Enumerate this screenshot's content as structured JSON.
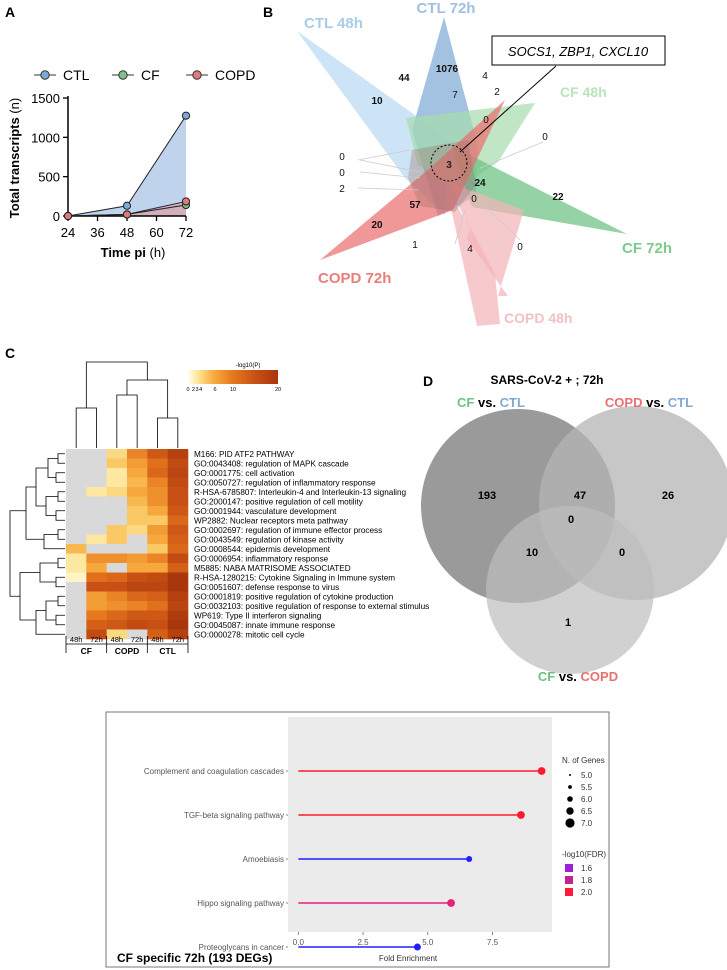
{
  "panel_labels": [
    "A",
    "B",
    "C",
    "D"
  ],
  "chart_data": [
    {
      "id": "A",
      "type": "line",
      "x": [
        24,
        48,
        72
      ],
      "xticks": [
        "24",
        "36",
        "48",
        "60",
        "72"
      ],
      "xtick_values": [
        24,
        36,
        48,
        60,
        72
      ],
      "yticks": [
        "0",
        "500",
        "1000",
        "1500"
      ],
      "ytick_values": [
        0,
        500,
        1000,
        1500
      ],
      "xlim": [
        24,
        72
      ],
      "ylim": [
        0,
        1500
      ],
      "xlabel_bold": "Time pi",
      "xlabel_unit": "(h)",
      "ylabel_bold": "Total transcripts",
      "ylabel_unit": "(n)",
      "legend": [
        "CTL",
        "CF",
        "COPD"
      ],
      "series": [
        {
          "name": "CTL",
          "values": [
            0,
            130,
            1275
          ],
          "color": "#7fa8d6",
          "fill": "#a9c4e6"
        },
        {
          "name": "CF",
          "values": [
            0,
            20,
            140
          ],
          "color": "#7fc08a",
          "fill": "#b5dcb9"
        },
        {
          "name": "COPD",
          "values": [
            0,
            20,
            185
          ],
          "color": "#e07a7a",
          "fill": "#dba0b8"
        }
      ]
    },
    {
      "id": "B",
      "type": "venn",
      "set_labels": [
        {
          "text": "CTL 48h",
          "color": "#a9cde8"
        },
        {
          "text": "CTL 72h",
          "color": "#9fc0e0"
        },
        {
          "text": "CF 48h",
          "color": "#b9e3b9"
        },
        {
          "text": "CF 72h",
          "color": "#7ccb8d"
        },
        {
          "text": "COPD 48h",
          "color": "#f2c1c3"
        },
        {
          "text": "COPD 72h",
          "color": "#ea7c7c"
        }
      ],
      "callout": "SOCS1, ZBP1, CXCL10",
      "counts": [
        "44",
        "1076",
        "4",
        "10",
        "7",
        "2",
        "0",
        "0",
        "0",
        "0",
        "2",
        "3",
        "24",
        "22",
        "57",
        "0",
        "20",
        "1",
        "4",
        "0"
      ]
    },
    {
      "id": "C",
      "type": "heatmap",
      "colorbar_title": "-log10(P)",
      "colorbar_ticks": [
        "0",
        "2",
        "3",
        "4",
        "6",
        "10",
        "20"
      ],
      "columns": [
        "48h",
        "72h",
        "48h",
        "72h",
        "48h",
        "72h"
      ],
      "groups": [
        "CF",
        "COPD",
        "CTL"
      ],
      "rows": [
        "M166: PID ATF2 PATHWAY",
        "GO:0043408: regulation of MAPK cascade",
        "GO:0001775: cell activation",
        "GO:0050727: regulation of inflammatory response",
        "R-HSA-6785807: Interleukin-4 and Interleukin-13 signaling",
        "GO:2000147: positive regulation of cell motility",
        "GO:0001944: vasculature development",
        "WP2882: Nuclear receptors meta pathway",
        "GO:0002697: regulation of immune effector process",
        "GO:0043549: regulation of kinase activity",
        "GO:0008544: epidermis development",
        "GO:0006954: inflammatory response",
        "M5885: NABA MATRISOME ASSOCIATED",
        "R-HSA-1280215: Cytokine Signaling in Immune system",
        "GO:0051607: defense response to virus",
        "GO:0001819: positive regulation of cytokine production",
        "GO:0032103: positive regulation of response to external stimulus",
        "WP619: Type II interferon signaling",
        "GO:0045087: innate immune response",
        "GO:0000278: mitotic cell cycle"
      ],
      "values": [
        [
          null,
          null,
          3,
          9,
          14,
          18
        ],
        [
          null,
          null,
          4,
          7,
          11,
          16
        ],
        [
          null,
          null,
          2,
          6,
          12,
          17
        ],
        [
          null,
          null,
          2,
          5,
          9,
          16
        ],
        [
          null,
          2,
          3,
          6,
          8,
          15
        ],
        [
          null,
          null,
          null,
          5,
          8,
          15
        ],
        [
          null,
          null,
          null,
          4,
          6,
          14
        ],
        [
          null,
          null,
          null,
          4,
          4,
          12
        ],
        [
          null,
          null,
          4,
          3,
          7,
          14
        ],
        [
          null,
          2,
          4,
          null,
          6,
          13
        ],
        [
          5,
          null,
          null,
          null,
          4,
          12
        ],
        [
          2,
          8,
          8,
          7,
          9,
          16
        ],
        [
          2,
          6,
          null,
          6,
          6,
          13
        ],
        [
          1,
          11,
          12,
          15,
          16,
          20
        ],
        [
          null,
          15,
          15,
          17,
          17,
          20
        ],
        [
          null,
          7,
          9,
          12,
          13,
          18
        ],
        [
          null,
          7,
          8,
          9,
          11,
          17
        ],
        [
          null,
          10,
          12,
          14,
          14,
          19
        ],
        [
          null,
          13,
          14,
          16,
          15,
          20
        ],
        [
          null,
          16,
          3,
          null,
          13,
          18
        ]
      ]
    },
    {
      "id": "D",
      "type": "venn",
      "title": "SARS-CoV-2 + ; 72h",
      "set_labels": [
        {
          "a": "CF",
          "vs": "vs.",
          "b": "CTL"
        },
        {
          "a": "COPD",
          "vs": "vs.",
          "b": "CTL"
        },
        {
          "a": "CF",
          "vs": "vs.",
          "b": "COPD"
        }
      ],
      "counts": [
        "193",
        "47",
        "26",
        "0",
        "10",
        "0",
        "1"
      ]
    },
    {
      "id": "E",
      "type": "lollipop",
      "title": "CF specific 72h (193 DEGs)",
      "xlabel": "Fold Enrichment",
      "xticks": [
        "0.0",
        "2.5",
        "5.0",
        "7.5"
      ],
      "xtick_values": [
        0,
        2.5,
        5,
        7.5
      ],
      "xlim": [
        -0.4,
        9.8
      ],
      "categories": [
        "Complement and coagulation cascades",
        "TGF-beta signaling pathway",
        "Amoebiasis",
        "Hippo signaling pathway",
        "Proteoglycans in cancer"
      ],
      "values": [
        9.4,
        8.6,
        6.6,
        5.9,
        4.6
      ],
      "n_genes": [
        6.0,
        6.0,
        5.0,
        6.0,
        5.5
      ],
      "colors": [
        "#ff1a2e",
        "#ff1a2e",
        "#2020ff",
        "#e8207a",
        "#2020ff"
      ],
      "legend_size_title": "N. of Genes",
      "legend_size_items": [
        "5.0",
        "5.5",
        "6.0",
        "6.5",
        "7.0"
      ],
      "legend_color_title": "-log10(FDR)",
      "legend_color_items": [
        "1.6",
        "1.8",
        "2.0"
      ]
    }
  ]
}
